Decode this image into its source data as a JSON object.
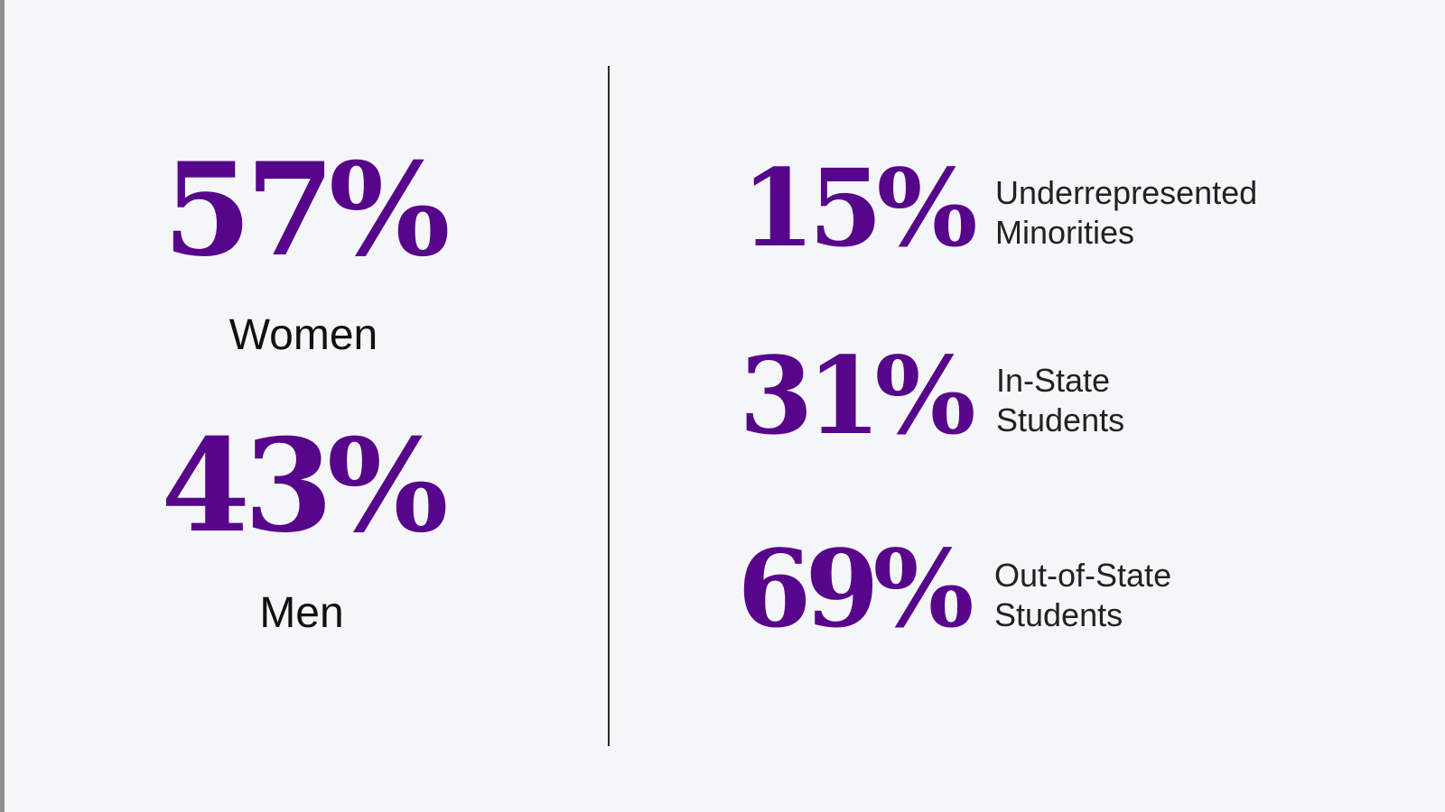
{
  "gender": [
    {
      "value": "57%",
      "label": "Women"
    },
    {
      "value": "43%",
      "label": "Men"
    }
  ],
  "demographics": [
    {
      "value": "15%",
      "label_line1": "Underrepresented",
      "label_line2": "Minorities"
    },
    {
      "value": "31%",
      "label_line1": "In-State",
      "label_line2": "Students"
    },
    {
      "value": "69%",
      "label_line1": "Out-of-State",
      "label_line2": "Students"
    }
  ],
  "colors": {
    "accent": "#57068c",
    "background": "#f5f6f8",
    "text": "#111111"
  }
}
